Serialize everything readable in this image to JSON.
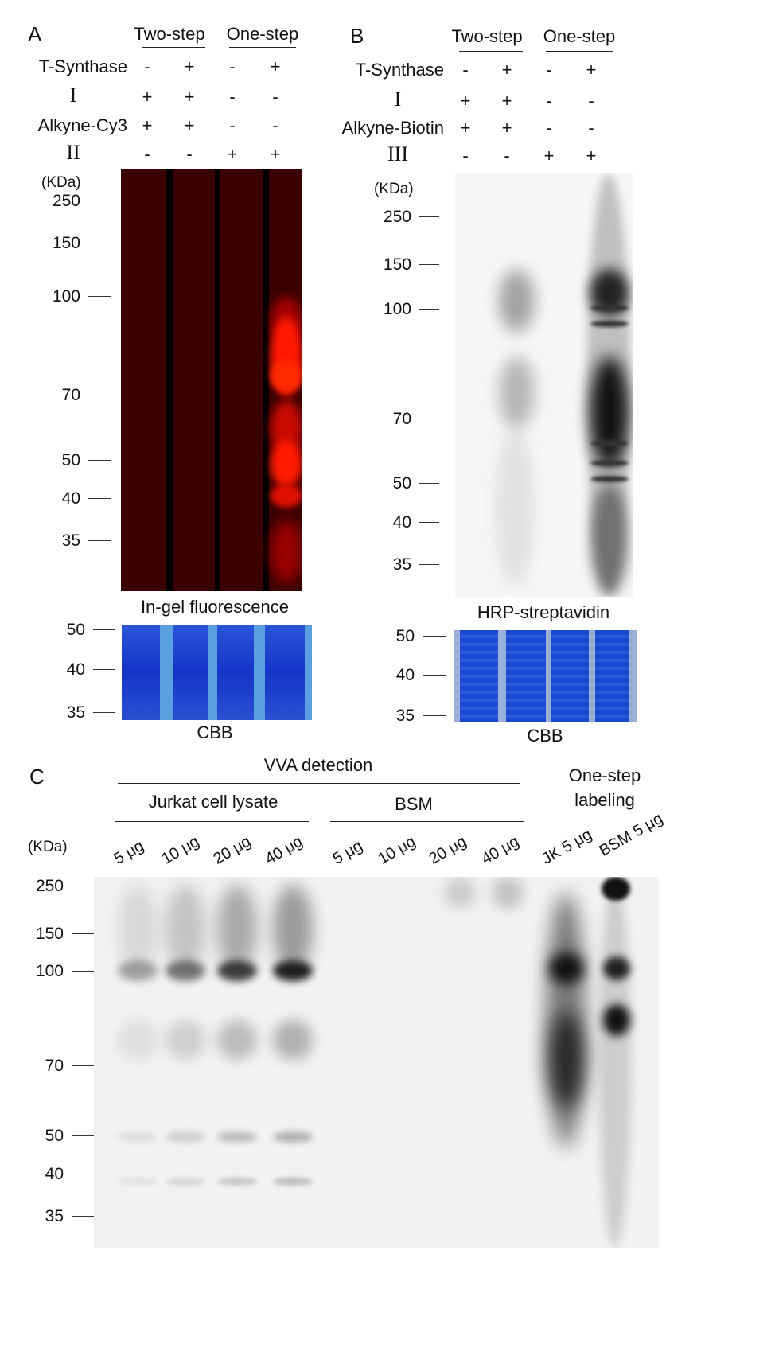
{
  "panel_a": {
    "letter": "A",
    "group_two": "Two-step",
    "group_one": "One-step",
    "rows": [
      {
        "label": "T-Synthase",
        "signs": [
          "-",
          "+",
          "-",
          "+"
        ]
      },
      {
        "label": "I",
        "signs": [
          "+",
          "+",
          "-",
          "-"
        ]
      },
      {
        "label": "Alkyne-Cy3",
        "signs": [
          "+",
          "+",
          "-",
          "-"
        ]
      },
      {
        "label": "II",
        "signs": [
          "-",
          "-",
          "+",
          "+"
        ]
      }
    ],
    "unit": "(KDa)",
    "markers": [
      "250",
      "150",
      "100",
      "70",
      "50",
      "40",
      "35"
    ],
    "gel_caption": "In-gel fluorescence",
    "cbb_markers": [
      "50",
      "40",
      "35"
    ],
    "cbb_caption": "CBB",
    "gel_color": "#ff1a00",
    "cbb_color": "#1a40d0"
  },
  "panel_b": {
    "letter": "B",
    "group_two": "Two-step",
    "group_one": "One-step",
    "rows": [
      {
        "label": "T-Synthase",
        "signs": [
          "-",
          "+",
          "-",
          "+"
        ]
      },
      {
        "label": "I",
        "signs": [
          "+",
          "+",
          "-",
          "-"
        ]
      },
      {
        "label": "Alkyne-Biotin",
        "signs": [
          "+",
          "+",
          "-",
          "-"
        ]
      },
      {
        "label": "III",
        "signs": [
          "-",
          "-",
          "+",
          "+"
        ]
      }
    ],
    "unit": "(KDa)",
    "markers": [
      "250",
      "150",
      "100",
      "70",
      "50",
      "40",
      "35"
    ],
    "gel_caption": "HRP-streptavidin",
    "cbb_markers": [
      "50",
      "40",
      "35"
    ],
    "cbb_caption": "CBB"
  },
  "panel_c": {
    "letter": "C",
    "header": "VVA detection",
    "group_jurkat": "Jurkat cell lysate",
    "group_bsm": "BSM",
    "group_one_line1": "One-step",
    "group_one_line2": "labeling",
    "unit": "(KDa)",
    "lanes": [
      "5 μg",
      "10 μg",
      "20 μg",
      "40 μg",
      "5 μg",
      "10 μg",
      "20 μg",
      "40 μg",
      "JK 5 μg",
      "BSM 5 μg"
    ],
    "markers": [
      "250",
      "150",
      "100",
      "70",
      "50",
      "40",
      "35"
    ]
  }
}
